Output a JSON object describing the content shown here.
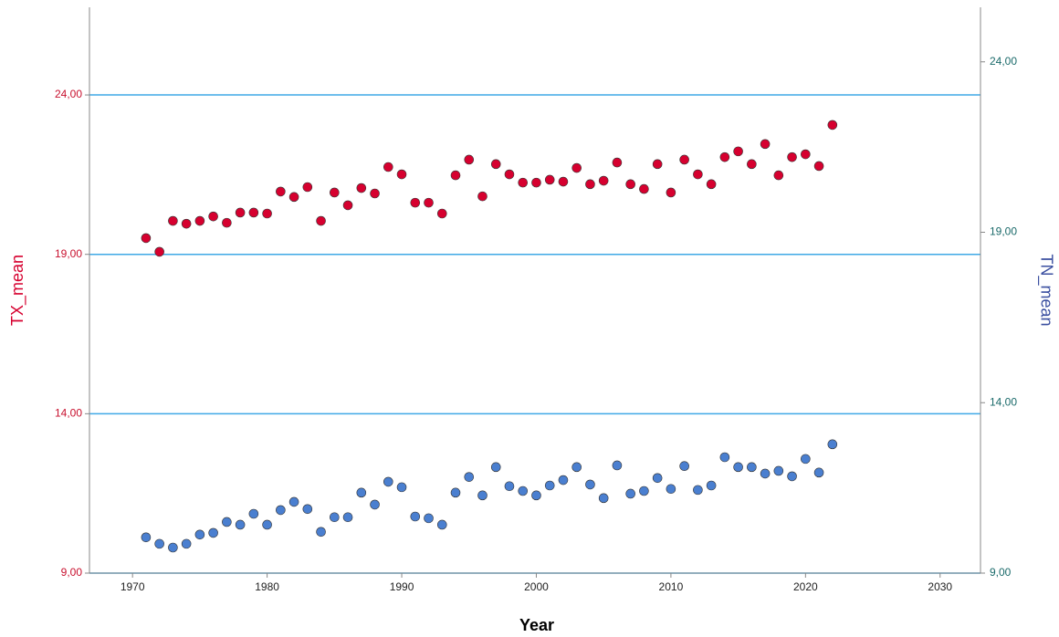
{
  "chart_data": {
    "type": "scatter",
    "xlabel": "Year",
    "x": [
      1971,
      1972,
      1973,
      1974,
      1975,
      1976,
      1977,
      1978,
      1979,
      1980,
      1981,
      1982,
      1983,
      1984,
      1985,
      1986,
      1987,
      1988,
      1989,
      1990,
      1991,
      1992,
      1993,
      1994,
      1995,
      1996,
      1997,
      1998,
      1999,
      2000,
      2001,
      2002,
      2003,
      2004,
      2005,
      2006,
      2007,
      2008,
      2009,
      2010,
      2011,
      2012,
      2013,
      2014,
      2015,
      2016,
      2017,
      2018,
      2019,
      2020,
      2021,
      2022
    ],
    "series": [
      {
        "name": "TX_mean",
        "color": "#d6002f",
        "axis": "y",
        "values": [
          19.51,
          19.08,
          20.05,
          19.96,
          20.05,
          20.19,
          19.99,
          20.31,
          20.31,
          20.28,
          20.97,
          20.8,
          21.11,
          20.05,
          20.94,
          20.54,
          21.08,
          20.91,
          21.74,
          21.51,
          20.62,
          20.62,
          20.28,
          21.48,
          21.97,
          20.82,
          21.83,
          21.51,
          21.25,
          21.25,
          21.34,
          21.28,
          21.71,
          21.2,
          21.31,
          21.88,
          21.2,
          21.05,
          21.83,
          20.94,
          21.97,
          21.51,
          21.2,
          22.05,
          22.23,
          21.83,
          22.46,
          21.48,
          22.05,
          22.14,
          21.77,
          23.06
        ]
      },
      {
        "name": "TN_mean",
        "color": "#4a7fd0",
        "axis": "y2",
        "values": [
          10.05,
          9.86,
          9.75,
          9.86,
          10.13,
          10.18,
          10.5,
          10.42,
          10.74,
          10.42,
          10.85,
          11.09,
          10.88,
          10.21,
          10.64,
          10.64,
          11.36,
          11.01,
          11.68,
          11.52,
          10.66,
          10.61,
          10.42,
          11.36,
          11.82,
          11.28,
          12.11,
          11.55,
          11.41,
          11.28,
          11.57,
          11.73,
          12.11,
          11.6,
          11.2,
          12.16,
          11.33,
          11.41,
          11.79,
          11.47,
          12.14,
          11.44,
          11.57,
          12.4,
          12.11,
          12.11,
          11.92,
          12.0,
          11.84,
          12.35,
          11.95,
          12.78
        ]
      }
    ],
    "xlim": [
      1966.8,
      2033
    ],
    "xticks": [
      1970,
      1980,
      1990,
      2000,
      2010,
      2020,
      2030
    ],
    "ylim": [
      9,
      26.75
    ],
    "yticks": [
      {
        "value": 9,
        "label": "9,00"
      },
      {
        "value": 14,
        "label": "14,00"
      },
      {
        "value": 19,
        "label": "19,00"
      },
      {
        "value": 24,
        "label": "24,00"
      }
    ],
    "y2lim": [
      9,
      25.6
    ],
    "y2ticks": [
      {
        "value": 9,
        "label": "9,00"
      },
      {
        "value": 14,
        "label": "14,00"
      },
      {
        "value": 19,
        "label": "19,00"
      },
      {
        "value": 24,
        "label": "24,00"
      }
    ],
    "grid": true,
    "grid_color": "#3fa9e6"
  }
}
